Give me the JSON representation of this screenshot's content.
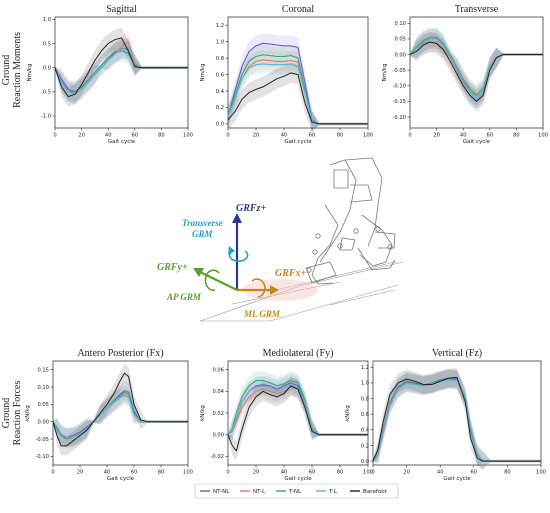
{
  "row_labels": {
    "moments": [
      "Ground",
      "Reaction Moments"
    ],
    "forces": [
      "Ground",
      "Reaction Forces"
    ]
  },
  "colors": {
    "NT-NL": "#6a5acd",
    "NT-L": "#e07b5a",
    "T-NL": "#3aa57a",
    "T-L": "#5ab4d6",
    "Barefoot": "#222222"
  },
  "legend": {
    "placement": "bottom-center",
    "entries": [
      {
        "name": "NT-NL",
        "color": "#6a5acd"
      },
      {
        "name": "NT-L",
        "color": "#e07b5a"
      },
      {
        "name": "T-NL",
        "color": "#3aa57a"
      },
      {
        "name": "T-L",
        "color": "#5ab4d6"
      },
      {
        "name": "Barefoot",
        "color": "#222222"
      }
    ]
  },
  "diagram": {
    "labels": {
      "grfz": "GRFz+",
      "transverse": "Transverse",
      "grm": "GRM",
      "grfy": "GRFy+",
      "grfx": "GRFx+",
      "ap_grm": "AP GRM",
      "ml_grm": "ML GRM"
    },
    "colors": {
      "grfz": "#2d3a8c",
      "transverse": "#1aa3c8",
      "grfy": "#5aa02c",
      "grfx": "#c8861a"
    }
  },
  "chart_data": [
    {
      "id": "sagittal",
      "type": "line",
      "title": "Sagittal",
      "xlabel": "Gait cycle",
      "ylabel": "Nm/kg",
      "xlim": [
        0,
        100
      ],
      "ylim": [
        -1.25,
        1.05
      ],
      "xticks": [
        0,
        20,
        40,
        60,
        80,
        100
      ],
      "yticks": [
        -1.0,
        -0.5,
        0.0,
        0.5,
        1.0
      ],
      "ytick_labels": [
        "-1.0",
        "-0.5",
        "0.0",
        "0.5",
        "1.0"
      ],
      "x": [
        0,
        5,
        10,
        15,
        20,
        25,
        30,
        35,
        40,
        45,
        50,
        55,
        60,
        65,
        70,
        80,
        90,
        100
      ],
      "series": [
        {
          "name": "NT-NL",
          "values": [
            0.0,
            -0.25,
            -0.45,
            -0.5,
            -0.4,
            -0.25,
            -0.1,
            0.05,
            0.2,
            0.33,
            0.4,
            0.38,
            0.05,
            0.0,
            0.0,
            0.0,
            0.0,
            0.0
          ]
        },
        {
          "name": "NT-L",
          "values": [
            0.0,
            -0.3,
            -0.5,
            -0.55,
            -0.45,
            -0.3,
            -0.15,
            0.0,
            0.15,
            0.3,
            0.42,
            0.55,
            0.1,
            0.0,
            0.0,
            0.0,
            0.0,
            0.0
          ]
        },
        {
          "name": "T-NL",
          "values": [
            0.0,
            -0.3,
            -0.5,
            -0.5,
            -0.4,
            -0.25,
            -0.1,
            0.05,
            0.2,
            0.3,
            0.35,
            0.3,
            0.05,
            0.0,
            0.0,
            0.0,
            0.0,
            0.0
          ]
        },
        {
          "name": "T-L",
          "values": [
            0.0,
            -0.3,
            -0.5,
            -0.55,
            -0.45,
            -0.3,
            -0.15,
            0.0,
            0.15,
            0.28,
            0.38,
            0.42,
            0.08,
            0.0,
            0.0,
            0.0,
            0.0,
            0.0
          ]
        },
        {
          "name": "Barefoot",
          "values": [
            0.0,
            -0.4,
            -0.6,
            -0.55,
            -0.35,
            -0.1,
            0.15,
            0.35,
            0.5,
            0.58,
            0.62,
            0.35,
            0.02,
            0.0,
            0.0,
            0.0,
            0.0,
            0.0
          ]
        }
      ]
    },
    {
      "id": "coronal",
      "type": "line",
      "title": "Coronal",
      "xlabel": "Gait cycle",
      "ylabel": "Nm/kg",
      "xlim": [
        0,
        100
      ],
      "ylim": [
        -0.05,
        1.3
      ],
      "xticks": [
        0,
        20,
        40,
        60,
        80,
        100
      ],
      "yticks": [
        0.0,
        0.2,
        0.4,
        0.6,
        0.8,
        1.0,
        1.2
      ],
      "ytick_labels": [
        "0.0",
        "0.2",
        "0.4",
        "0.6",
        "0.8",
        "1.0",
        "1.2"
      ],
      "x": [
        0,
        5,
        10,
        15,
        20,
        25,
        30,
        35,
        40,
        45,
        50,
        55,
        60,
        65,
        70,
        80,
        90,
        100
      ],
      "series": [
        {
          "name": "NT-NL",
          "values": [
            0.1,
            0.4,
            0.7,
            0.88,
            0.95,
            0.98,
            0.97,
            0.96,
            0.95,
            0.95,
            0.93,
            0.5,
            0.05,
            0.0,
            0.0,
            0.0,
            0.0,
            0.0
          ]
        },
        {
          "name": "NT-L",
          "values": [
            0.1,
            0.3,
            0.55,
            0.7,
            0.76,
            0.78,
            0.77,
            0.76,
            0.76,
            0.77,
            0.75,
            0.4,
            0.04,
            0.0,
            0.0,
            0.0,
            0.0,
            0.0
          ]
        },
        {
          "name": "T-NL",
          "values": [
            0.1,
            0.35,
            0.6,
            0.76,
            0.82,
            0.84,
            0.83,
            0.82,
            0.82,
            0.83,
            0.8,
            0.42,
            0.04,
            0.0,
            0.0,
            0.0,
            0.0,
            0.0
          ]
        },
        {
          "name": "T-L",
          "values": [
            0.1,
            0.3,
            0.55,
            0.68,
            0.72,
            0.73,
            0.72,
            0.72,
            0.72,
            0.73,
            0.7,
            0.38,
            0.04,
            0.0,
            0.0,
            0.0,
            0.0,
            0.0
          ]
        },
        {
          "name": "Barefoot",
          "values": [
            0.05,
            0.15,
            0.3,
            0.38,
            0.42,
            0.45,
            0.5,
            0.55,
            0.58,
            0.62,
            0.6,
            0.25,
            0.02,
            0.0,
            0.0,
            0.0,
            0.0,
            0.0
          ]
        }
      ]
    },
    {
      "id": "transverse",
      "type": "line",
      "title": "Transverse",
      "xlabel": "Gait cycle",
      "ylabel": "Nm/kg",
      "xlim": [
        0,
        100
      ],
      "ylim": [
        -0.235,
        0.12
      ],
      "xticks": [
        0,
        20,
        40,
        60,
        80,
        100
      ],
      "yticks": [
        -0.2,
        -0.15,
        -0.1,
        -0.05,
        0.0,
        0.05,
        0.1
      ],
      "ytick_labels": [
        "-0.20",
        "-0.15",
        "-0.10",
        "-0.05",
        "0.00",
        "0.05",
        "0.10"
      ],
      "x": [
        0,
        5,
        10,
        15,
        20,
        25,
        30,
        35,
        40,
        45,
        50,
        55,
        60,
        65,
        70,
        80,
        90,
        100
      ],
      "series": [
        {
          "name": "NT-NL",
          "values": [
            0.0,
            0.02,
            0.04,
            0.05,
            0.05,
            0.03,
            0.0,
            -0.04,
            -0.08,
            -0.12,
            -0.14,
            -0.12,
            -0.04,
            -0.01,
            0.0,
            0.0,
            0.0,
            0.0
          ]
        },
        {
          "name": "NT-L",
          "values": [
            0.0,
            0.02,
            0.035,
            0.04,
            0.04,
            0.02,
            -0.01,
            -0.05,
            -0.09,
            -0.12,
            -0.13,
            -0.11,
            -0.04,
            -0.01,
            0.0,
            0.0,
            0.0,
            0.0
          ]
        },
        {
          "name": "T-NL",
          "values": [
            0.0,
            0.025,
            0.045,
            0.055,
            0.055,
            0.035,
            0.0,
            -0.04,
            -0.08,
            -0.11,
            -0.13,
            -0.11,
            -0.04,
            -0.01,
            0.0,
            0.0,
            0.0,
            0.0
          ]
        },
        {
          "name": "T-L",
          "values": [
            0.0,
            0.02,
            0.04,
            0.05,
            0.05,
            0.03,
            -0.005,
            -0.045,
            -0.085,
            -0.12,
            -0.14,
            -0.12,
            -0.04,
            -0.01,
            0.0,
            0.0,
            0.0,
            0.0
          ]
        },
        {
          "name": "Barefoot",
          "values": [
            0.0,
            0.01,
            0.03,
            0.04,
            0.035,
            0.015,
            -0.02,
            -0.06,
            -0.1,
            -0.13,
            -0.15,
            -0.13,
            -0.05,
            -0.01,
            0.0,
            0.0,
            0.0,
            0.0
          ]
        }
      ]
    },
    {
      "id": "antero-posterior",
      "type": "line",
      "title": "Antero Posterior (Fx)",
      "xlabel": "Gait cycle",
      "ylabel": "kN/kg",
      "xlim": [
        0,
        100
      ],
      "ylim": [
        -0.125,
        0.175
      ],
      "xticks": [
        0,
        20,
        40,
        60,
        80,
        100
      ],
      "yticks": [
        -0.1,
        -0.05,
        0.0,
        0.05,
        0.1,
        0.15
      ],
      "ytick_labels": [
        "-0.10",
        "-0.05",
        "0.00",
        "0.05",
        "0.10",
        "0.15"
      ],
      "x": [
        0,
        3,
        6,
        10,
        15,
        20,
        25,
        30,
        35,
        40,
        45,
        50,
        53,
        56,
        60,
        65,
        70,
        80,
        90,
        100
      ],
      "series": [
        {
          "name": "NT-NL",
          "values": [
            0.0,
            -0.02,
            -0.04,
            -0.045,
            -0.04,
            -0.03,
            -0.015,
            0.0,
            0.02,
            0.04,
            0.06,
            0.08,
            0.09,
            0.085,
            0.03,
            0.0,
            0.0,
            0.0,
            0.0,
            0.0
          ]
        },
        {
          "name": "NT-L",
          "values": [
            0.0,
            -0.015,
            -0.035,
            -0.045,
            -0.045,
            -0.035,
            -0.02,
            0.0,
            0.02,
            0.04,
            0.055,
            0.07,
            0.08,
            0.075,
            0.02,
            0.0,
            0.0,
            0.0,
            0.0,
            0.0
          ]
        },
        {
          "name": "T-NL",
          "values": [
            0.0,
            -0.02,
            -0.04,
            -0.05,
            -0.045,
            -0.035,
            -0.02,
            0.0,
            0.02,
            0.04,
            0.06,
            0.075,
            0.085,
            0.08,
            0.025,
            0.0,
            0.0,
            0.0,
            0.0,
            0.0
          ]
        },
        {
          "name": "T-L",
          "values": [
            0.0,
            -0.015,
            -0.035,
            -0.045,
            -0.045,
            -0.035,
            -0.02,
            0.0,
            0.02,
            0.04,
            0.055,
            0.07,
            0.075,
            0.07,
            0.02,
            0.0,
            0.0,
            0.0,
            0.0,
            0.0
          ]
        },
        {
          "name": "Barefoot",
          "values": [
            0.0,
            -0.04,
            -0.07,
            -0.07,
            -0.055,
            -0.04,
            -0.025,
            0.0,
            0.025,
            0.05,
            0.08,
            0.12,
            0.14,
            0.13,
            0.05,
            0.005,
            0.0,
            0.0,
            0.0,
            0.0
          ]
        }
      ]
    },
    {
      "id": "mediolateral",
      "type": "line",
      "title": "Mediolateral (Fy)",
      "xlabel": "Gait cycle",
      "ylabel": "kN/kg",
      "xlim": [
        0,
        100
      ],
      "ylim": [
        -0.028,
        0.068
      ],
      "xticks": [
        0,
        20,
        40,
        60,
        80,
        100
      ],
      "yticks": [
        -0.02,
        0.0,
        0.02,
        0.04,
        0.06
      ],
      "ytick_labels": [
        "-0.02",
        "0.00",
        "0.02",
        "0.04",
        "0.06"
      ],
      "x": [
        0,
        3,
        6,
        10,
        15,
        20,
        25,
        30,
        35,
        40,
        45,
        50,
        55,
        60,
        65,
        70,
        80,
        90,
        100
      ],
      "series": [
        {
          "name": "NT-NL",
          "values": [
            0.0,
            0.005,
            0.015,
            0.03,
            0.04,
            0.045,
            0.046,
            0.045,
            0.042,
            0.045,
            0.048,
            0.045,
            0.03,
            0.005,
            0.0,
            0.0,
            0.0,
            0.0,
            0.0
          ]
        },
        {
          "name": "NT-L",
          "values": [
            0.0,
            0.003,
            0.012,
            0.025,
            0.035,
            0.04,
            0.042,
            0.04,
            0.038,
            0.04,
            0.044,
            0.042,
            0.028,
            0.005,
            0.0,
            0.0,
            0.0,
            0.0,
            0.0
          ]
        },
        {
          "name": "T-NL",
          "values": [
            0.0,
            0.005,
            0.02,
            0.035,
            0.045,
            0.05,
            0.05,
            0.048,
            0.045,
            0.047,
            0.05,
            0.048,
            0.032,
            0.006,
            0.0,
            0.0,
            0.0,
            0.0,
            0.0
          ]
        },
        {
          "name": "T-L",
          "values": [
            0.0,
            0.004,
            0.015,
            0.03,
            0.04,
            0.044,
            0.045,
            0.043,
            0.04,
            0.043,
            0.046,
            0.043,
            0.03,
            0.005,
            0.0,
            0.0,
            0.0,
            0.0,
            0.0
          ]
        },
        {
          "name": "Barefoot",
          "values": [
            0.0,
            -0.01,
            -0.015,
            0.005,
            0.025,
            0.035,
            0.04,
            0.037,
            0.035,
            0.038,
            0.045,
            0.042,
            0.025,
            0.003,
            0.0,
            0.0,
            0.0,
            0.0,
            0.0
          ]
        }
      ]
    },
    {
      "id": "vertical",
      "type": "line",
      "title": "Vertical (Fz)",
      "xlabel": "Gait cycle",
      "ylabel": "kN/kg",
      "xlim": [
        0,
        100
      ],
      "ylim": [
        -0.05,
        1.28
      ],
      "xticks": [
        0,
        20,
        40,
        60,
        80,
        100
      ],
      "yticks": [
        0.0,
        0.2,
        0.4,
        0.6,
        0.8,
        1.0,
        1.2
      ],
      "ytick_labels": [
        "0.0",
        "0.2",
        "0.4",
        "0.6",
        "0.8",
        "1.0",
        "1.2"
      ],
      "x": [
        0,
        3,
        6,
        10,
        15,
        20,
        25,
        30,
        35,
        40,
        45,
        50,
        55,
        58,
        62,
        65,
        70,
        80,
        90,
        100
      ],
      "series": [
        {
          "name": "NT-NL",
          "values": [
            0.0,
            0.1,
            0.4,
            0.75,
            0.95,
            1.02,
            1.0,
            0.97,
            1.0,
            1.04,
            1.06,
            1.05,
            0.8,
            0.4,
            0.08,
            0.01,
            0.0,
            0.0,
            0.0,
            0.0
          ]
        },
        {
          "name": "NT-L",
          "values": [
            0.0,
            0.08,
            0.35,
            0.7,
            0.92,
            1.0,
            0.98,
            0.96,
            0.99,
            1.03,
            1.05,
            1.04,
            0.82,
            0.45,
            0.1,
            0.01,
            0.0,
            0.0,
            0.0,
            0.0
          ]
        },
        {
          "name": "T-NL",
          "values": [
            0.0,
            0.1,
            0.4,
            0.74,
            0.94,
            1.01,
            0.99,
            0.97,
            1.0,
            1.03,
            1.05,
            1.04,
            0.8,
            0.42,
            0.08,
            0.01,
            0.0,
            0.0,
            0.0,
            0.0
          ]
        },
        {
          "name": "T-L",
          "values": [
            0.0,
            0.09,
            0.38,
            0.72,
            0.93,
            1.0,
            0.98,
            0.96,
            0.99,
            1.02,
            1.04,
            1.03,
            0.82,
            0.45,
            0.09,
            0.01,
            0.0,
            0.0,
            0.0,
            0.0
          ]
        },
        {
          "name": "Barefoot",
          "values": [
            0.0,
            0.15,
            0.5,
            0.85,
            1.0,
            1.05,
            1.02,
            0.98,
            0.98,
            1.02,
            1.06,
            1.07,
            0.75,
            0.3,
            0.04,
            0.0,
            0.0,
            0.0,
            0.0,
            0.0
          ]
        }
      ]
    }
  ]
}
